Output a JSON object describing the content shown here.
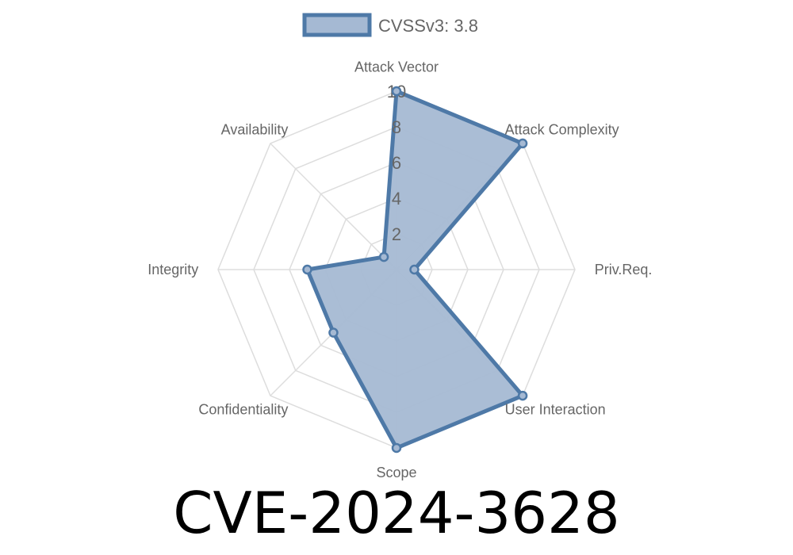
{
  "chart_data": {
    "type": "radar",
    "axes": [
      "Attack Vector",
      "Attack Complexity",
      "Priv.Req.",
      "User Interaction",
      "Scope",
      "Confidentiality",
      "Integrity",
      "Availability"
    ],
    "series": [
      {
        "name": "CVSSv3: 3.8",
        "values": [
          10,
          10,
          1,
          10,
          10,
          5,
          5,
          1
        ]
      }
    ],
    "rlim": [
      0,
      10
    ],
    "ticks": [
      2,
      4,
      6,
      8,
      10
    ],
    "legend": "top",
    "grid": true,
    "colors": {
      "line": "#4e79a7",
      "fill": "#a5b9d3",
      "grid": "#dddddd"
    }
  },
  "title": "CVE-2024-3628"
}
